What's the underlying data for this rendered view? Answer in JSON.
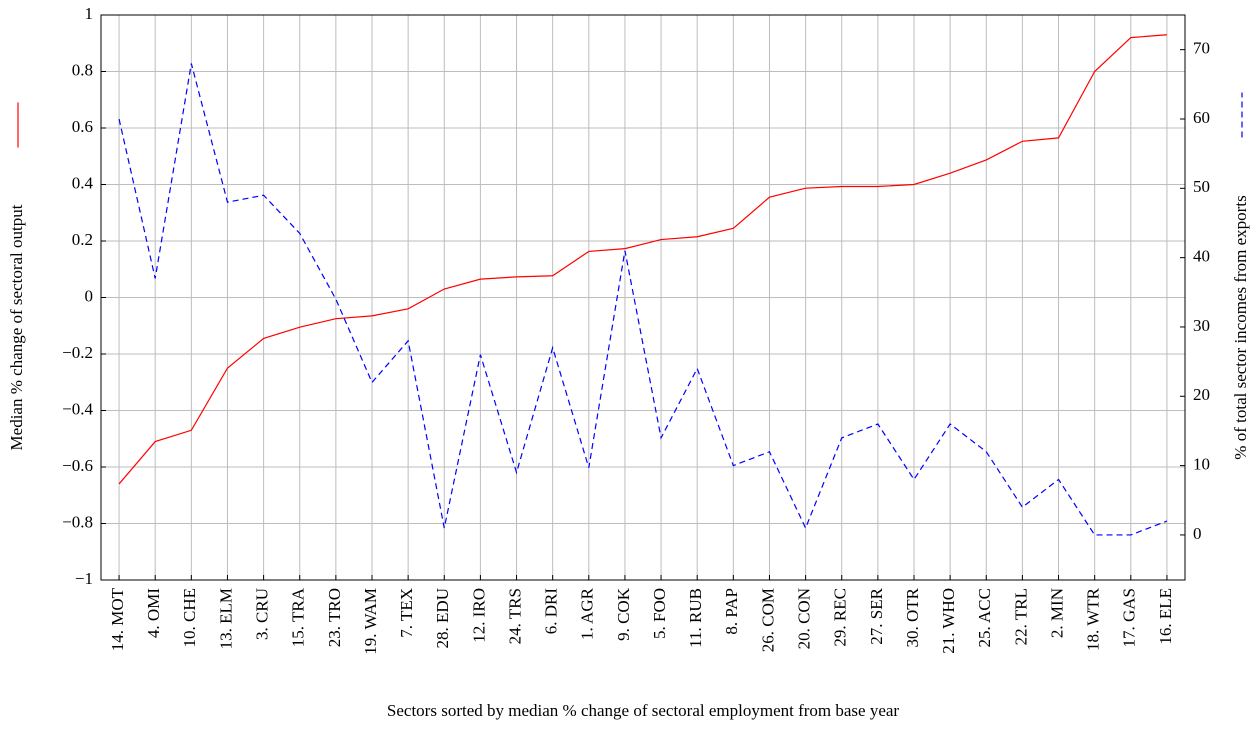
{
  "chart_data": {
    "type": "line",
    "xlabel": "Sectors sorted by median % change of sectoral employment from base year",
    "categories": [
      "14. MOT",
      "4. OMI",
      "10. CHE",
      "13. ELM",
      "3. CRU",
      "15. TRA",
      "23. TRO",
      "19. WAM",
      "7. TEX",
      "28. EDU",
      "12. IRO",
      "24. TRS",
      "6. DRI",
      "1. AGR",
      "9. COK",
      "5. FOO",
      "11. RUB",
      "8. PAP",
      "26. COM",
      "20. CON",
      "29. REC",
      "27. SER",
      "30. OTR",
      "21. WHO",
      "25. ACC",
      "22. TRL",
      "2. MIN",
      "18. WTR",
      "17. GAS",
      "16. ELE"
    ],
    "series": [
      {
        "name": "Median % change of sectoral output",
        "color": "#ff0000",
        "dash": false,
        "values": [
          -0.66,
          -0.51,
          -0.47,
          -0.25,
          -0.145,
          -0.105,
          -0.075,
          -0.065,
          -0.04,
          0.03,
          0.065,
          0.073,
          0.077,
          0.163,
          0.173,
          0.205,
          0.215,
          0.245,
          0.355,
          0.387,
          0.393,
          0.393,
          0.4,
          0.44,
          0.487,
          0.553,
          0.565,
          0.8,
          0.92,
          0.93
        ]
      },
      {
        "name": "% of total sector incomes from exports",
        "color": "#0000ff",
        "dash": true,
        "axis": "y2",
        "values": [
          60,
          37,
          68,
          48,
          49,
          43.5,
          34,
          22,
          28,
          1,
          26,
          9,
          27,
          9.7,
          41,
          14,
          24,
          10,
          12,
          1,
          14,
          16,
          8,
          16,
          12,
          4,
          8,
          0,
          0,
          2
        ]
      }
    ],
    "ylim": [
      -1,
      1
    ],
    "yticks": [
      {
        "value": -1,
        "label": "−1"
      },
      {
        "value": -0.8,
        "label": "−0.8"
      },
      {
        "value": -0.6,
        "label": "−0.6"
      },
      {
        "value": -0.4,
        "label": "−0.4"
      },
      {
        "value": -0.2,
        "label": "−0.2"
      },
      0,
      0.2,
      0.4,
      0.6,
      0.8,
      1
    ],
    "y2lim": [
      -6.5,
      75
    ],
    "y2ticks": [
      0,
      10,
      20,
      30,
      40,
      50,
      60,
      70
    ],
    "grid": true
  }
}
